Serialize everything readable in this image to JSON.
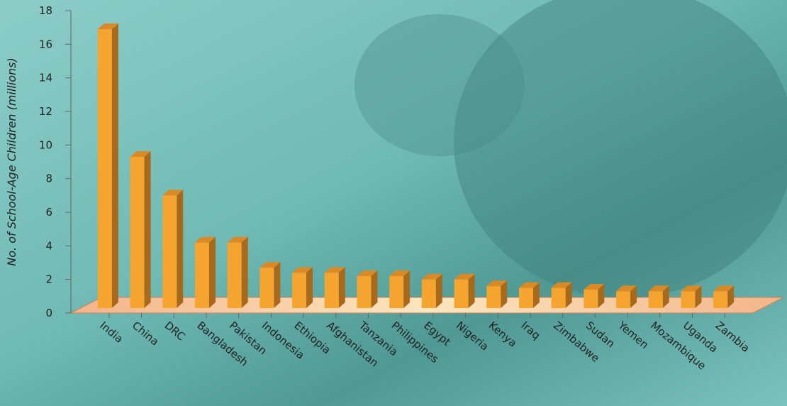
{
  "chart_data": {
    "type": "bar3d",
    "y_label": "No. of School-Age Children (millions)",
    "categories": [
      "India",
      "China",
      "DRC",
      "Bangladesh",
      "Pakistan",
      "Indonesia",
      "Ethiopia",
      "Afghanistan",
      "Tanzania",
      "Philippines",
      "Egypt",
      "Nigeria",
      "Kenya",
      "Iraq",
      "Zimbabwe",
      "Sudan",
      "Yemen",
      "Mozambique",
      "Uganda",
      "Zambia"
    ],
    "values": [
      16.6,
      9.0,
      6.7,
      3.9,
      3.9,
      2.4,
      2.1,
      2.1,
      1.9,
      1.9,
      1.7,
      1.7,
      1.3,
      1.2,
      1.2,
      1.1,
      1.0,
      1.0,
      1.0,
      1.0
    ],
    "color": "#f5a42f",
    "ylim": [
      0,
      18
    ],
    "yticks": [
      0,
      2,
      4,
      6,
      8,
      10,
      12,
      14,
      16,
      18
    ]
  }
}
